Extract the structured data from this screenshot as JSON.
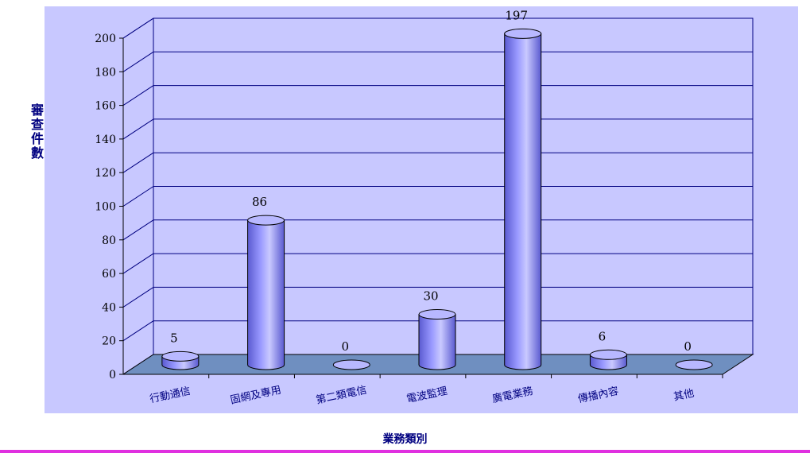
{
  "chart_data": {
    "type": "bar",
    "title": "",
    "xlabel": "業務類別",
    "ylabel": "審查件數",
    "categories": [
      "行動通信",
      "固網及專用",
      "第二類電信",
      "電波監理",
      "廣電業務",
      "傳播內容",
      "其他"
    ],
    "series": [
      {
        "values": [
          5,
          86,
          0,
          30,
          197,
          6,
          0
        ]
      }
    ],
    "ylim": [
      0,
      200
    ],
    "yticks": [
      0,
      20,
      40,
      60,
      80,
      100,
      120,
      140,
      160,
      180,
      200
    ],
    "grid": true,
    "legend": "none",
    "colors": {
      "background": "#c8c8ff",
      "floor": "#6f8fc0",
      "bar": "#9999ff",
      "bar_dark": "#5a5ad0",
      "bar_top": "#b8b8ff",
      "gridline": "#000080",
      "text": "#000080"
    }
  }
}
